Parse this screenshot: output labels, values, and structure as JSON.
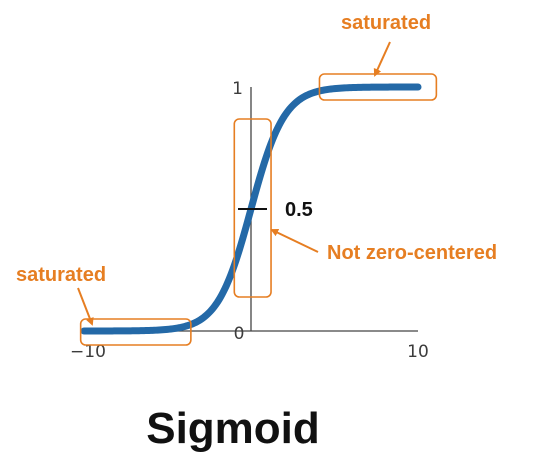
{
  "chart_data": {
    "type": "line",
    "title": "Sigmoid",
    "xlim": [
      -10,
      10
    ],
    "ylim": [
      0,
      1
    ],
    "x_tick_labels": [
      "−10",
      "0",
      "10"
    ],
    "y_tick_labels": [
      "1"
    ],
    "series": [
      {
        "function": "sigmoid",
        "x": [
          -10,
          -8,
          -6,
          -5,
          -4,
          -3,
          -2,
          -1,
          0,
          1,
          2,
          3,
          4,
          5,
          6,
          8,
          10
        ],
        "y": [
          4.54e-05,
          0.000335,
          0.00247,
          0.00669,
          0.018,
          0.0474,
          0.119,
          0.269,
          0.5,
          0.731,
          0.881,
          0.953,
          0.982,
          0.993,
          0.998,
          0.99966,
          0.99995
        ]
      }
    ],
    "grid": false,
    "legend": "none",
    "colors": {
      "curve": "#2469a7",
      "axis": "#444444",
      "annotation": "#e67e22",
      "marker": "#111111"
    },
    "annotations": {
      "saturated_left": "saturated",
      "saturated_right": "saturated",
      "not_zero_centered": "Not zero-centered",
      "half_value": "0.5"
    },
    "annotated_regions": {
      "saturated_left": {
        "x_range": [
          -10.2,
          -3.6
        ]
      },
      "saturated_right": {
        "x_range": [
          4.1,
          11.1
        ]
      },
      "not_zero_centered": {
        "x_range": [
          -1.0,
          1.2
        ]
      }
    }
  }
}
